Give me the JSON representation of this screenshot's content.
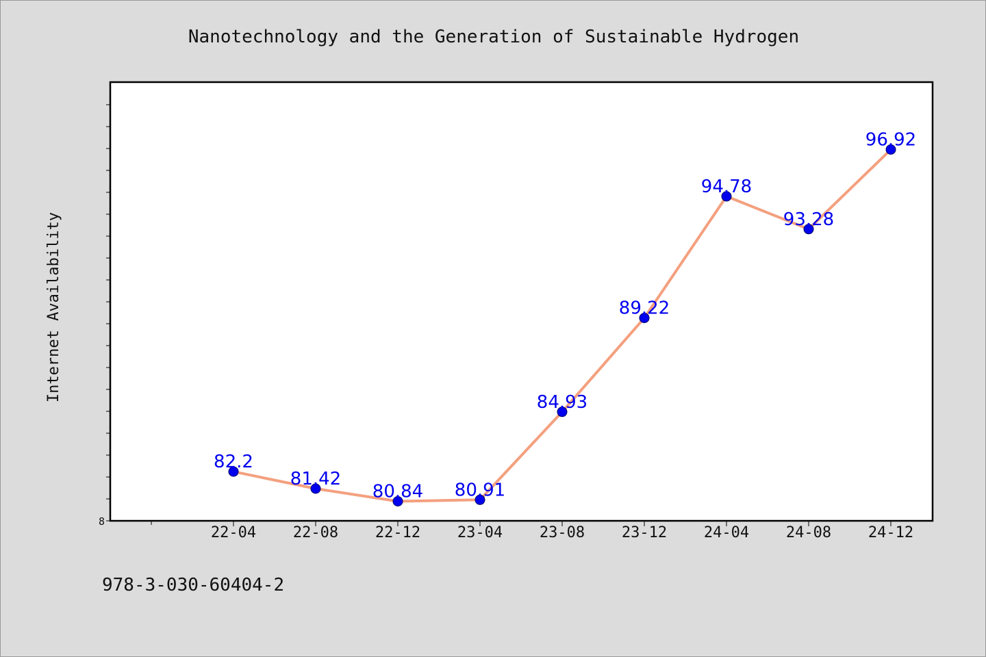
{
  "colors": {
    "background": "#dcdcdc",
    "plot_background": "#ffffff",
    "line": "#f4a07f",
    "marker": "#0000ee",
    "data_label": "#0000ee",
    "axis": "#000000"
  },
  "footer": {
    "isbn": "978-3-030-60404-2"
  },
  "chart_data": {
    "type": "line",
    "title": "Nanotechnology and the Generation of Sustainable Hydrogen",
    "xlabel": "",
    "ylabel": "Internet Availability",
    "categories": [
      "22-04",
      "22-08",
      "22-12",
      "23-04",
      "23-08",
      "23-12",
      "24-04",
      "24-08",
      "24-12"
    ],
    "series": [
      {
        "values": [
          82.2,
          81.42,
          80.84,
          80.91,
          84.93,
          89.22,
          94.78,
          93.28,
          96.92
        ]
      }
    ],
    "data_labels": [
      "82.2",
      "81.42",
      "80.84",
      "80.91",
      "84.93",
      "89.22",
      "94.78",
      "93.28",
      "96.92"
    ],
    "ylim": [
      79.95,
      100
    ],
    "y_tick_labels": [
      "8"
    ],
    "grid": false,
    "legend": "none"
  }
}
